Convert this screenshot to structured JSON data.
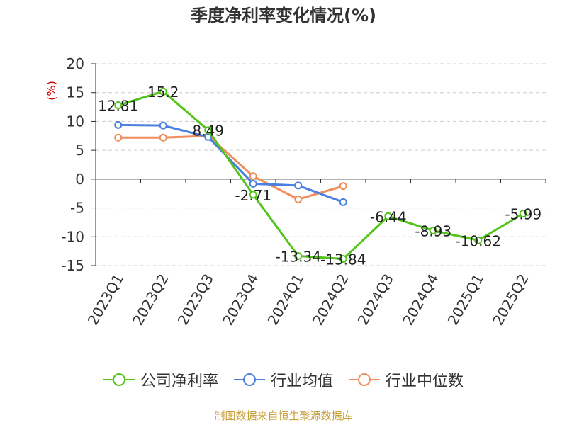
{
  "title": "季度净利率变化情况(%)",
  "source": "制图数据来自恒生聚源数据库",
  "chart_data": {
    "type": "line",
    "title": "季度净利率变化情况(%)",
    "ylabel": "(%)",
    "xlabel": "",
    "ylim": [
      -15,
      20
    ],
    "yticks": [
      20,
      15,
      10,
      5,
      0,
      -5,
      -10,
      -15
    ],
    "grid": true,
    "legend_position": "bottom",
    "categories": [
      "2023Q1",
      "2023Q2",
      "2023Q3",
      "2023Q4",
      "2024Q1",
      "2024Q2",
      "2024Q3",
      "2024Q4",
      "2025Q1",
      "2025Q2"
    ],
    "series": [
      {
        "name": "公司净利率",
        "color": "#52c41a",
        "values": [
          12.81,
          15.2,
          8.49,
          -2.71,
          -13.34,
          -13.84,
          -6.44,
          -8.93,
          -10.62,
          -5.99
        ],
        "labels": [
          "12.81",
          "15.2",
          "8.49",
          "-2.71",
          "-13.34",
          "-13.84",
          "-6.44",
          "-8.93",
          "-10.62",
          "-5.99"
        ]
      },
      {
        "name": "行业均值",
        "color": "#4a7ee0",
        "values": [
          9.4,
          9.3,
          7.3,
          -0.8,
          -1.1,
          -4.0,
          null,
          null,
          null,
          null
        ]
      },
      {
        "name": "行业中位数",
        "color": "#f08c5a",
        "values": [
          7.2,
          7.2,
          7.5,
          0.5,
          -3.5,
          -1.2,
          null,
          null,
          null,
          null
        ]
      }
    ]
  }
}
